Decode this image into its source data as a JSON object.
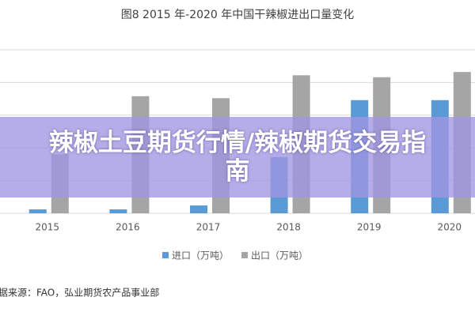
{
  "chart_data": {
    "type": "bar",
    "title": "图8 2015 年-2020 年中国干辣椒进出口量变化",
    "categories": [
      "2015",
      "2016",
      "2017",
      "2018",
      "2019",
      "2020"
    ],
    "series": [
      {
        "name": "进口（万吨）",
        "color": "#5b9bd5",
        "values": [
          0.6,
          0.6,
          1.2,
          8.6,
          17.3,
          17.3
        ]
      },
      {
        "name": "出口（万吨）",
        "color": "#a5a5a5",
        "values": [
          9,
          17.9,
          17.6,
          21.1,
          20.8,
          21.6
        ]
      }
    ],
    "ylim": [
      0,
      25
    ],
    "yticks": [
      0,
      5,
      10,
      15,
      20,
      25
    ],
    "grid": true,
    "legend": "bottom",
    "source": "数据来源：FAO，弘业期货农产品事业部"
  },
  "overlay_text": "辣椒土豆期货行情/辣椒期货交易指南"
}
